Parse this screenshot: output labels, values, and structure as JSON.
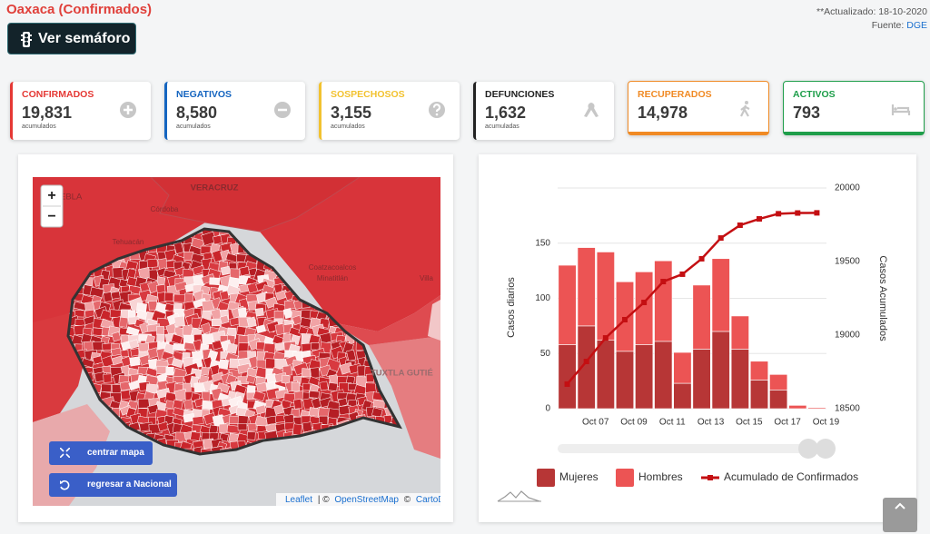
{
  "header": {
    "title": "Oaxaca (Confirmados)",
    "button": "Ver semáforo",
    "updated": "**Actualizado: 18-10-2020",
    "source_label": "Fuente:",
    "source_link": "DGE"
  },
  "cards": [
    {
      "label": "CONFIRMADOS",
      "value": "19,831",
      "note": "acumulados"
    },
    {
      "label": "NEGATIVOS",
      "value": "8,580",
      "note": "acumulados"
    },
    {
      "label": "SOSPECHOSOS",
      "value": "3,155",
      "note": "acumulados"
    },
    {
      "label": "DEFUNCIONES",
      "value": "1,632",
      "note": "acumuladas"
    },
    {
      "label": "RECUPERADOS",
      "value": "14,978"
    },
    {
      "label": "ACTIVOS",
      "value": "793"
    }
  ],
  "map": {
    "zoom_in": "+",
    "zoom_out": "−",
    "center_button": "centrar mapa",
    "national_button": "regresar a Nacional",
    "place_labels": [
      "EBLA",
      "VERACRUZ",
      "Córdoba",
      "Tehuacán",
      "Coatzacoalcos",
      "Minatitlán",
      "Villa",
      "TUXTLA GUTIÉ"
    ],
    "attribution": {
      "leaflet": "Leaflet",
      "sep1": "| ©",
      "osm": "OpenStreetMap",
      "sep2": "©",
      "carto": "CartoDB"
    }
  },
  "chart_data": {
    "type": "bar",
    "stacked": true,
    "categories": [
      null,
      "Oct 07",
      null,
      "Oct 09",
      null,
      "Oct 11",
      null,
      "Oct 13",
      null,
      "Oct 15",
      null,
      "Oct 17",
      null,
      "Oct 19"
    ],
    "y_label": "Casos diarios",
    "y2_label": "Casos Acumulados",
    "ylim": [
      0,
      200
    ],
    "yticks": [
      0,
      50,
      100,
      150
    ],
    "y2lim": [
      18500,
      20000
    ],
    "y2ticks": [
      18500,
      19000,
      19500,
      20000
    ],
    "grid": true,
    "legend": "bottom",
    "series": [
      {
        "name": "Mujeres",
        "color": "#b73636",
        "values": [
          58,
          75,
          62,
          52,
          58,
          61,
          23,
          54,
          70,
          54,
          26,
          17,
          0,
          0
        ]
      },
      {
        "name": "Hombres",
        "color": "#ec5454",
        "values": [
          72,
          71,
          80,
          63,
          66,
          73,
          28,
          58,
          66,
          30,
          17,
          14,
          3,
          1
        ]
      },
      {
        "name": "Acumulado de Confirmados",
        "color": "#c40f12",
        "type": "line",
        "axis": "y2",
        "values": [
          18667,
          18821,
          18981,
          19105,
          19222,
          19364,
          19414,
          19519,
          19660,
          19747,
          19790,
          19825,
          19830,
          19831
        ]
      }
    ]
  }
}
